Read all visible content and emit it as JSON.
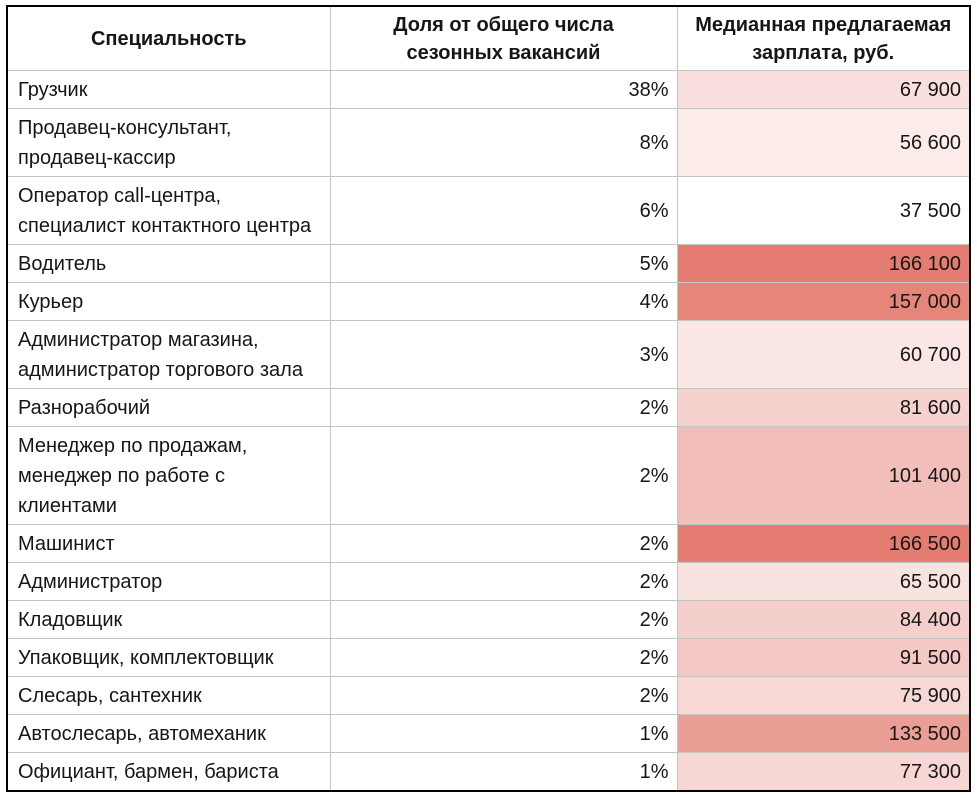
{
  "chart_data": {
    "type": "table",
    "columns": [
      "Специальность",
      "Доля от общего числа сезонных вакансий",
      "Медианная предлагаемая зарплата, руб."
    ],
    "rows": [
      {
        "specialty": "Грузчик",
        "share": "38%",
        "share_pct": 38,
        "salary": "67 900",
        "salary_value": 67900
      },
      {
        "specialty": "Продавец-консультант, продавец-кассир",
        "share": "8%",
        "share_pct": 8,
        "salary": "56 600",
        "salary_value": 56600
      },
      {
        "specialty": "Оператор call-центра, специалист контактного центра",
        "share": "6%",
        "share_pct": 6,
        "salary": "37 500",
        "salary_value": 37500
      },
      {
        "specialty": "Водитель",
        "share": "5%",
        "share_pct": 5,
        "salary": "166 100",
        "salary_value": 166100
      },
      {
        "specialty": "Курьер",
        "share": "4%",
        "share_pct": 4,
        "salary": "157 000",
        "salary_value": 157000
      },
      {
        "specialty": "Администратор магазина, администратор торгового зала",
        "share": "3%",
        "share_pct": 3,
        "salary": "60 700",
        "salary_value": 60700
      },
      {
        "specialty": "Разнорабочий",
        "share": "2%",
        "share_pct": 2,
        "salary": "81 600",
        "salary_value": 81600
      },
      {
        "specialty": "Менеджер по продажам, менеджер по работе с клиентами",
        "share": "2%",
        "share_pct": 2,
        "salary": "101 400",
        "salary_value": 101400
      },
      {
        "specialty": "Машинист",
        "share": "2%",
        "share_pct": 2,
        "salary": "166 500",
        "salary_value": 166500
      },
      {
        "specialty": "Администратор",
        "share": "2%",
        "share_pct": 2,
        "salary": "65 500",
        "salary_value": 65500
      },
      {
        "specialty": "Кладовщик",
        "share": "2%",
        "share_pct": 2,
        "salary": "84 400",
        "salary_value": 84400
      },
      {
        "specialty": "Упаковщик, комплектовщик",
        "share": "2%",
        "share_pct": 2,
        "salary": "91 500",
        "salary_value": 91500
      },
      {
        "specialty": "Слесарь, сантехник",
        "share": "2%",
        "share_pct": 2,
        "salary": "75 900",
        "salary_value": 75900
      },
      {
        "specialty": "Автослесарь, автомеханик",
        "share": "1%",
        "share_pct": 1,
        "salary": "133 500",
        "salary_value": 133500
      },
      {
        "specialty": "Официант, бармен, бариста",
        "share": "1%",
        "share_pct": 1,
        "salary": "77 300",
        "salary_value": 77300
      }
    ],
    "heatmap": {
      "column": "salary",
      "min_value": 37500,
      "max_value": 166500,
      "min_color": "#ffffff",
      "max_color": "#e47c71"
    },
    "layout": {
      "grid": true,
      "grid_color": "#c4c4c4",
      "outer_border_color": "#000000"
    }
  }
}
